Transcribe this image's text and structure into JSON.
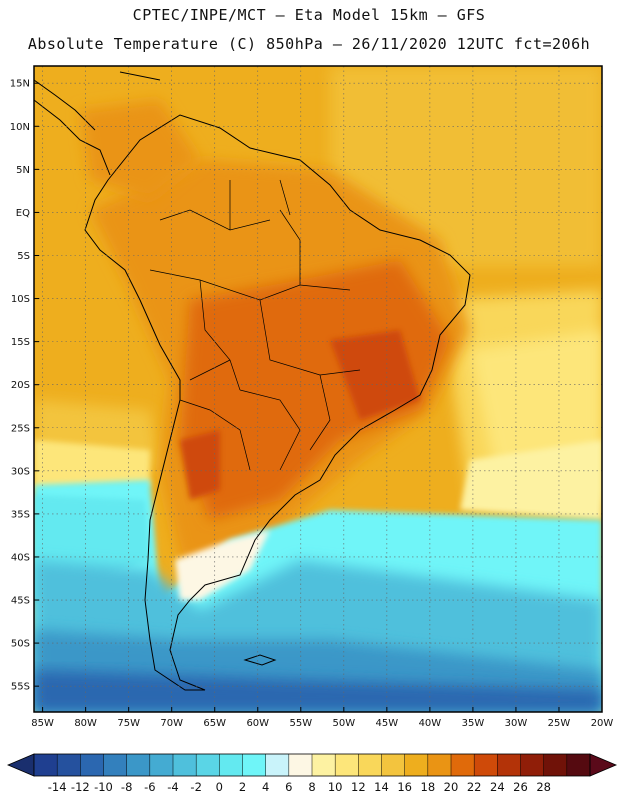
{
  "header": {
    "line1": "CPTEC/INPE/MCT –  Eta Model 15km – GFS",
    "line2": "Absolute Temperature (C) 850hPa – 26/11/2020 12UTC fct=206h"
  },
  "map": {
    "lon_range": [
      -86,
      -20
    ],
    "lat_range": [
      -58,
      17
    ],
    "lon_ticks": [
      {
        "value": -85,
        "label": "85W"
      },
      {
        "value": -80,
        "label": "80W"
      },
      {
        "value": -75,
        "label": "75W"
      },
      {
        "value": -70,
        "label": "70W"
      },
      {
        "value": -65,
        "label": "65W"
      },
      {
        "value": -60,
        "label": "60W"
      },
      {
        "value": -55,
        "label": "55W"
      },
      {
        "value": -50,
        "label": "50W"
      },
      {
        "value": -45,
        "label": "45W"
      },
      {
        "value": -40,
        "label": "40W"
      },
      {
        "value": -35,
        "label": "35W"
      },
      {
        "value": -30,
        "label": "30W"
      },
      {
        "value": -25,
        "label": "25W"
      },
      {
        "value": -20,
        "label": "20W"
      }
    ],
    "lat_ticks": [
      {
        "value": 15,
        "label": "15N"
      },
      {
        "value": 10,
        "label": "10N"
      },
      {
        "value": 5,
        "label": "5N"
      },
      {
        "value": 0,
        "label": "EQ"
      },
      {
        "value": -5,
        "label": "5S"
      },
      {
        "value": -10,
        "label": "10S"
      },
      {
        "value": -15,
        "label": "15S"
      },
      {
        "value": -20,
        "label": "20S"
      },
      {
        "value": -25,
        "label": "25S"
      },
      {
        "value": -30,
        "label": "30S"
      },
      {
        "value": -35,
        "label": "35S"
      },
      {
        "value": -40,
        "label": "40S"
      },
      {
        "value": -45,
        "label": "45S"
      },
      {
        "value": -50,
        "label": "50S"
      },
      {
        "value": -55,
        "label": "55S"
      }
    ]
  },
  "colorbar": {
    "labels": [
      "-14",
      "-12",
      "-10",
      "-8",
      "-6",
      "-4",
      "-2",
      "0",
      "2",
      "4",
      "6",
      "8",
      "10",
      "12",
      "14",
      "16",
      "18",
      "20",
      "22",
      "24",
      "26",
      "28"
    ],
    "colors": [
      "#1f3f90",
      "#25519e",
      "#2b67b0",
      "#3380bd",
      "#3b97c8",
      "#44abd2",
      "#4fc0dc",
      "#5ad5e6",
      "#63e9f0",
      "#6ff5f8",
      "#c9f3fa",
      "#fdf7e4",
      "#fdf2a2",
      "#fde67a",
      "#f9d75a",
      "#f3c43e",
      "#eeae1e",
      "#ea9414",
      "#e06a0a",
      "#cf4a09",
      "#b33308",
      "#901e08",
      "#701208",
      "#550a10"
    ],
    "under_color": "#1a2f6e",
    "over_color": "#5a0a1a"
  }
}
